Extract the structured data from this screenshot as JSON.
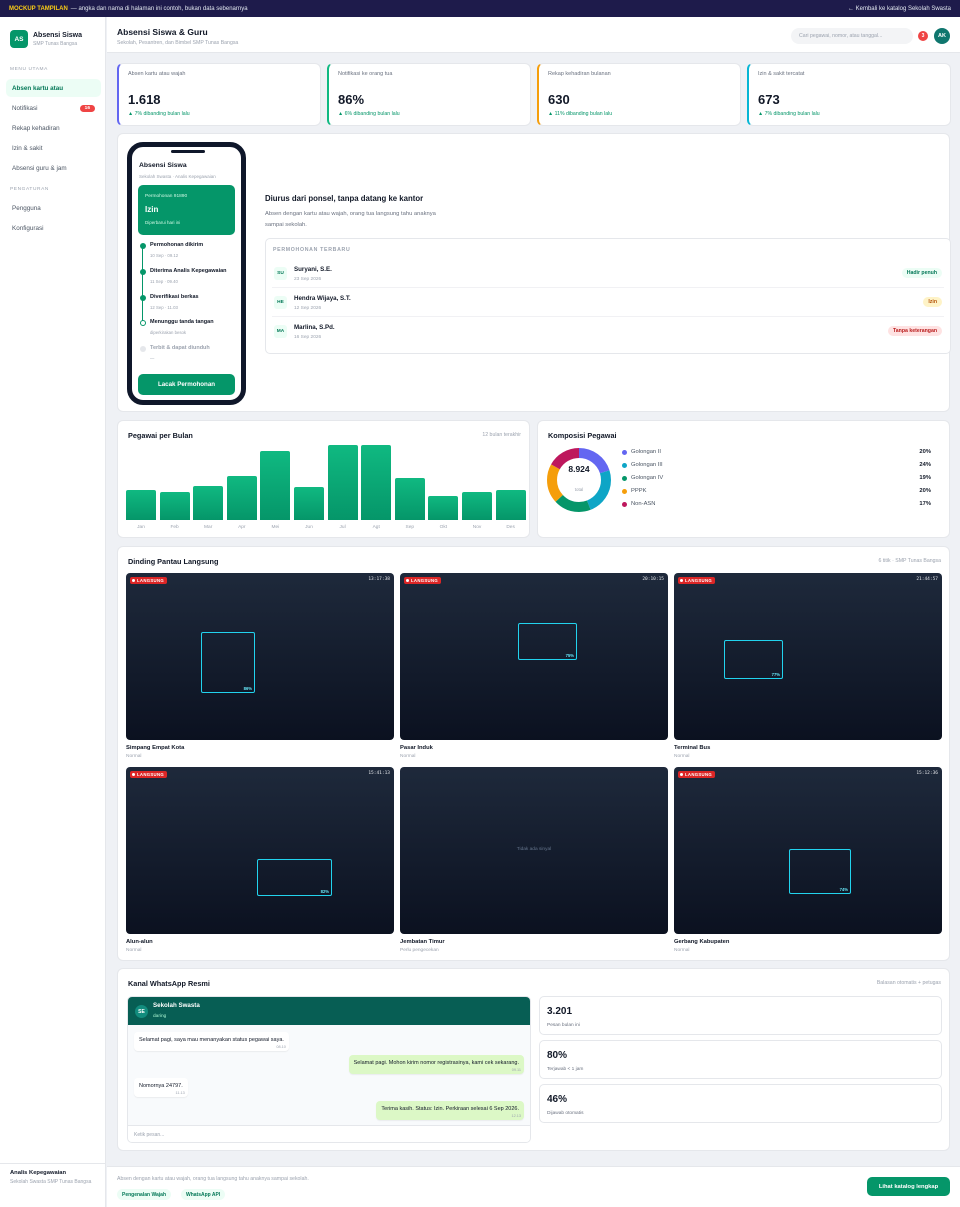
{
  "banner": {
    "tag": "MOCKUP TAMPILAN",
    "text": "— angka dan nama di halaman ini contoh, bukan data sebenarnya",
    "back": "← Kembali ke katalog Sekolah Swasta"
  },
  "brand": {
    "logo": "AS",
    "title": "Absensi Siswa",
    "subtitle": "SMP Tunas Bangsa"
  },
  "sidebar": {
    "menu_heading": "MENU UTAMA",
    "items": [
      {
        "label": "Absen kartu atau",
        "active": true
      },
      {
        "label": "Notifikasi",
        "badge": "16"
      },
      {
        "label": "Rekap kehadiran"
      },
      {
        "label": "Izin & sakit"
      },
      {
        "label": "Absensi guru & jam"
      }
    ],
    "settings_heading": "PENGATURAN",
    "settings": [
      {
        "label": "Pengguna"
      },
      {
        "label": "Konfigurasi"
      }
    ],
    "user": {
      "name": "Analis Kepegawaian",
      "role": "Sekolah Swasta SMP Tunas Bangsa"
    }
  },
  "header": {
    "title": "Absensi Siswa & Guru",
    "subtitle": "Sekolah, Pesantren, dan Bimbel SMP Tunas Bangsa",
    "search_placeholder": "Cari pegawai, nomor, atau tanggal...",
    "notif_count": "3",
    "avatar": "AK"
  },
  "stats": [
    {
      "label": "Absen kartu atau wajah",
      "value": "1.618",
      "change": "▲ 7% dibanding bulan lalu",
      "color": "#6366f1"
    },
    {
      "label": "Notifikasi ke orang tua",
      "value": "86%",
      "change": "▲ 6% dibanding bulan lalu",
      "color": "#10b981"
    },
    {
      "label": "Rekap kehadiran bulanan",
      "value": "630",
      "change": "▲ 11% dibanding bulan lalu",
      "color": "#f59e0b"
    },
    {
      "label": "Izin & sakit tercatat",
      "value": "673",
      "change": "▲ 7% dibanding bulan lalu",
      "color": "#06b6d4"
    }
  ],
  "phone": {
    "title": "Absensi Siswa",
    "subtitle": "Sekolah Swasta · Analis Kepegawaian",
    "card_label": "Permohonan 91890",
    "card_title": "Izin",
    "card_note": "Diperbarui hari ini",
    "steps": [
      {
        "title": "Permohonan dikirim",
        "sub": "10 Sep · 09.12"
      },
      {
        "title": "Diterima Analis Kepegawaian",
        "sub": "11 Sep · 09.40"
      },
      {
        "title": "Diverifikasi berkas",
        "sub": "12 Sep · 11.03"
      },
      {
        "title": "Menunggu tanda tangan",
        "sub": "diperkirakan besok"
      },
      {
        "title": "Terbit & dapat diunduh",
        "sub": "—"
      }
    ],
    "button": "Lacak Permohonan"
  },
  "hero": {
    "title": "Diurus dari ponsel, tanpa datang ke kantor",
    "desc": "Absen dengan kartu atau wajah, orang tua langsung tahu anaknya sampai sekolah."
  },
  "requests": {
    "heading": "PERMOHONAN TERBARU",
    "items": [
      {
        "initials": "SU",
        "name": "Suryani, S.E.",
        "date": "23 Sep 2026",
        "status": "Hadir penuh",
        "bg": "#ecfdf5",
        "fg": "#047857"
      },
      {
        "initials": "HE",
        "name": "Hendra Wijaya, S.T.",
        "date": "12 Sep 2026",
        "status": "Izin",
        "bg": "#fef3c7",
        "fg": "#b45309"
      },
      {
        "initials": "MA",
        "name": "Marlina, S.Pd.",
        "date": "16 Sep 2026",
        "status": "Tanpa keterangan",
        "bg": "#fee2e2",
        "fg": "#b91c1c"
      }
    ]
  },
  "chart_data": [
    {
      "type": "bar",
      "title": "Pegawai per Bulan",
      "subtitle": "12 bulan terakhir",
      "categories": [
        "Jan",
        "Feb",
        "Mar",
        "Apr",
        "Mei",
        "Jun",
        "Jul",
        "Agt",
        "Sep",
        "Okt",
        "Nov",
        "Des"
      ],
      "values": [
        40,
        37,
        46,
        59,
        92,
        44,
        100,
        100,
        56,
        32,
        38,
        40
      ]
    },
    {
      "type": "pie",
      "title": "Komposisi Pegawai",
      "center_value": "8.924",
      "center_label": "total",
      "slices": [
        {
          "name": "Golongan II",
          "value": 20,
          "label": "20%",
          "color": "#6366f1"
        },
        {
          "name": "Golongan III",
          "value": 24,
          "label": "24%",
          "color": "#0ea5c6"
        },
        {
          "name": "Golongan IV",
          "value": 19,
          "label": "19%",
          "color": "#059669"
        },
        {
          "name": "PPPK",
          "value": 20,
          "label": "20%",
          "color": "#f59e0b"
        },
        {
          "name": "Non-ASN",
          "value": 17,
          "label": "17%",
          "color": "#be185d"
        }
      ]
    }
  ],
  "cctv": {
    "title": "Dinding Pantau Langsung",
    "note": "6 titik · SMP Tunas Bangsa",
    "live_label": "LANGSUNG",
    "no_signal": "Tidak ada sinyal",
    "cams": [
      {
        "name": "Simpang Empat Kota",
        "status": "Normal",
        "time": "13:17:38",
        "live": true,
        "conf": "86%"
      },
      {
        "name": "Pasar Induk",
        "status": "Normal",
        "time": "20:10:15",
        "live": true,
        "conf": "75%"
      },
      {
        "name": "Terminal Bus",
        "status": "Normal",
        "time": "21:44:57",
        "live": true,
        "conf": "77%"
      },
      {
        "name": "Alun-alun",
        "status": "Normal",
        "time": "15:41:13",
        "live": true,
        "conf": "82%"
      },
      {
        "name": "Jembatan Timur",
        "status": "Perlu pengecekan",
        "time": "",
        "live": false,
        "conf": ""
      },
      {
        "name": "Gerbang Kabupaten",
        "status": "Normal",
        "time": "15:12:36",
        "live": true,
        "conf": "74%"
      }
    ]
  },
  "whatsapp": {
    "title": "Kanal WhatsApp Resmi",
    "note": "Balasan otomatis + petugas",
    "contact": {
      "initials": "SE",
      "name": "Sekolah Swasta",
      "status": "daring"
    },
    "messages": [
      {
        "dir": "in",
        "text": "Selamat pagi, saya mau menanyakan status pegawai saya.",
        "time": "08.10"
      },
      {
        "dir": "out",
        "text": "Selamat pagi. Mohon kirim nomor registrasinya, kami cek sekarang.",
        "time": "09.11"
      },
      {
        "dir": "in",
        "text": "Nomornya 24797.",
        "time": "11.13"
      },
      {
        "dir": "out",
        "text": "Terima kasih. Status: Izin. Perkiraan selesai 6 Sep 2026.",
        "time": "12.13"
      }
    ],
    "input_placeholder": "Ketik pesan...",
    "metrics": [
      {
        "value": "3.201",
        "label": "Pesan bulan ini"
      },
      {
        "value": "80%",
        "label": "Terjawab < 1 jam"
      },
      {
        "value": "46%",
        "label": "Dijawab otomatis"
      }
    ]
  },
  "footer": {
    "text": "Absen dengan kartu atau wajah, orang tua langsung tahu anaknya sampai sekolah.",
    "chips": [
      "Pengenalan Wajah",
      "WhatsApp API"
    ],
    "button": "Lihat katalog lengkap"
  }
}
